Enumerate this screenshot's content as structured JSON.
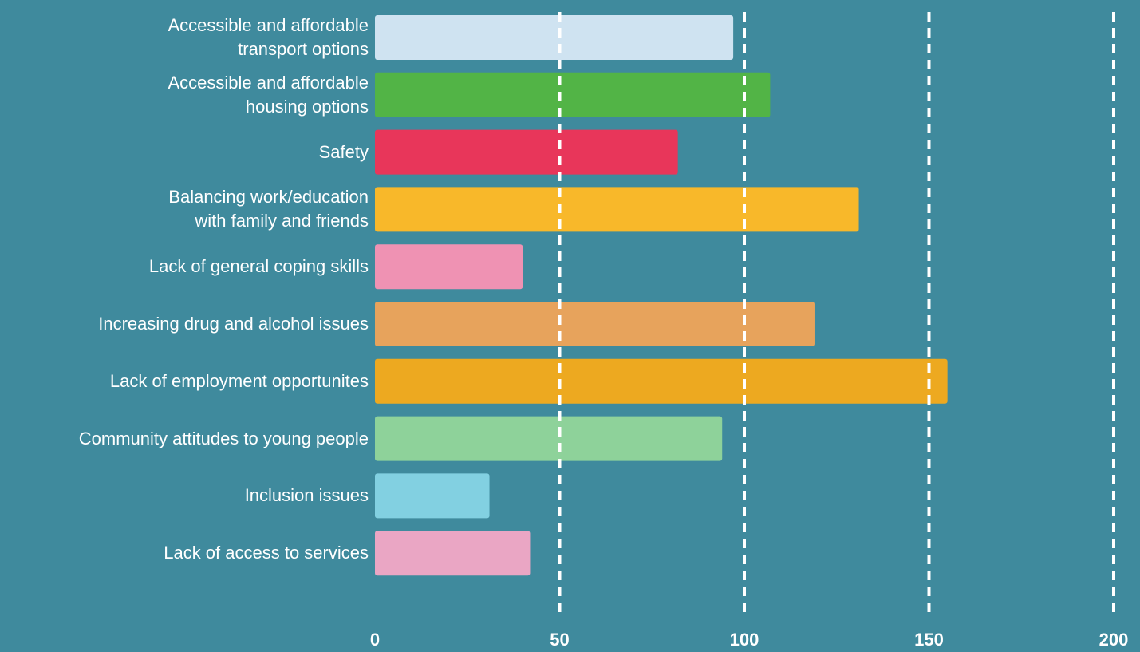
{
  "chart_data": {
    "type": "bar",
    "orientation": "horizontal",
    "categories": [
      "Accessible and affordable\ntransport options",
      "Accessible and affordable\nhousing options",
      "Safety",
      "Balancing work/education\nwith family and friends",
      "Lack of general coping skills",
      "Increasing drug and alcohol issues",
      "Lack of employment opportunites",
      "Community attitudes to young people",
      "Inclusion issues",
      "Lack of access to services"
    ],
    "values": [
      97,
      107,
      82,
      131,
      40,
      119,
      155,
      94,
      31,
      42
    ],
    "colors": [
      "#cfe3f1",
      "#52b446",
      "#e8365a",
      "#f8b82a",
      "#ef92b3",
      "#e7a35c",
      "#eda920",
      "#8ed29a",
      "#82d0e1",
      "#eaa6c4"
    ],
    "xlim": [
      0,
      200
    ],
    "xticks": [
      0,
      50,
      100,
      150,
      200
    ],
    "grid": true
  }
}
